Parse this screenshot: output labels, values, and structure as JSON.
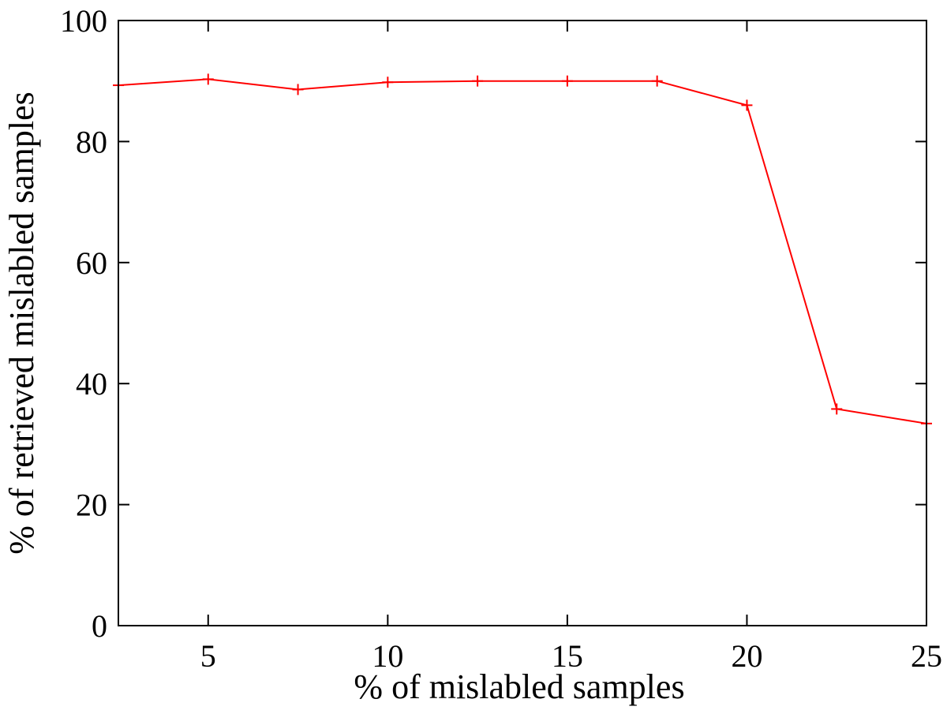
{
  "chart_data": {
    "type": "line",
    "title": "",
    "xlabel": "% of mislabled samples",
    "ylabel": "% of retrieved mislabled samples",
    "xlim": [
      2.5,
      25
    ],
    "ylim": [
      0,
      100
    ],
    "xticks": [
      5,
      10,
      15,
      20,
      25
    ],
    "yticks": [
      0,
      20,
      40,
      60,
      80,
      100
    ],
    "grid": false,
    "legend": "none",
    "series": [
      {
        "color": "#ff0000",
        "marker": "plus",
        "x": [
          2.5,
          5,
          7.5,
          10,
          12.5,
          15,
          17.5,
          20,
          22.5,
          25
        ],
        "y": [
          89.3,
          90.3,
          88.6,
          89.8,
          90.0,
          90.0,
          90.0,
          86.0,
          35.8,
          33.4
        ]
      }
    ]
  }
}
